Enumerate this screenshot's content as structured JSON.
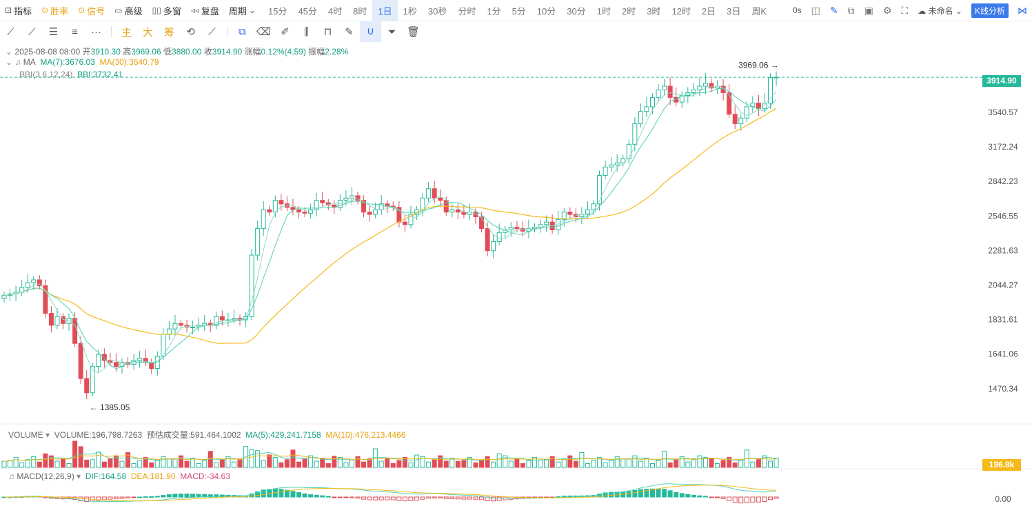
{
  "toolbar": {
    "items": [
      {
        "icon": "chart-icon",
        "label": "指标"
      },
      {
        "icon": "winrate-icon",
        "label": "胜率"
      },
      {
        "icon": "signal-icon",
        "label": "信号"
      },
      {
        "icon": "calendar-icon",
        "label": "高级"
      },
      {
        "icon": "grid-icon",
        "label": "多窗"
      },
      {
        "icon": "rewind-icon",
        "label": "复盘"
      },
      {
        "icon": "",
        "label": "周期"
      }
    ],
    "periods": [
      "15分",
      "45分",
      "4时",
      "8时",
      "1日",
      "1秒",
      "30秒",
      "分时",
      "1分",
      "5分",
      "10分",
      "30分",
      "1时",
      "2时",
      "3时",
      "12时",
      "2日",
      "3日",
      "周K"
    ],
    "active_period": "1日",
    "countdown": "0s",
    "layout_name": "未命名",
    "kline_button": "K线分析"
  },
  "drawtools": {
    "labels": [
      "主",
      "大",
      "筹"
    ]
  },
  "info": {
    "date": "2025-08-08 08:00",
    "open_label": "开",
    "open": "3910.30",
    "high_label": "高",
    "high": "3969.06",
    "low_label": "低",
    "low": "3880.00",
    "close_label": "收",
    "close": "3914.90",
    "change_label": "涨幅",
    "change": "0.12%(4.59)",
    "amp_label": "振幅",
    "amp": "2.28%",
    "ma_title": "MA",
    "ma7": "MA(7):3676.03",
    "ma30": "MA(30):3540.79",
    "bbi_title": "BBI(3,6,12,24)",
    "bbi": "BBI:3732.41"
  },
  "volume_info": {
    "title": "VOLUME",
    "volume": "VOLUME:196,798.7263",
    "estimated": "预估成交量:591,464.1002",
    "ma5": "MA(5):429,241.7158",
    "ma10": "MA(10):476,213.4466"
  },
  "macd_info": {
    "title": "MACD(12,26,9)",
    "dif": "DIF:164.58",
    "dea": "DEA:181.90",
    "macd": "MACD:-34.63"
  },
  "colors": {
    "up": "#26b89a",
    "down": "#e14d57",
    "ma7": "#4fd1b3",
    "ma30": "#f5b91b",
    "accent": "#2a6ee8"
  },
  "chart_data": {
    "type": "candlestick",
    "y_axis_ticks": [
      "3540.57",
      "3172.24",
      "2842.23",
      "2546.55",
      "2281.63",
      "2044.27",
      "1831.61",
      "1641.06",
      "1470.34"
    ],
    "last_price": "3914.90",
    "high_marker": "3969.06",
    "low_marker": "1385.05",
    "volume_last": "196.8k",
    "macd_axis": "0.00",
    "closes": [
      1980,
      1990,
      2000,
      2030,
      2060,
      2080,
      2040,
      1870,
      1800,
      1850,
      1810,
      1840,
      1700,
      1520,
      1450,
      1580,
      1640,
      1610,
      1600,
      1580,
      1600,
      1590,
      1610,
      1620,
      1600,
      1570,
      1630,
      1750,
      1780,
      1810,
      1800,
      1790,
      1790,
      1800,
      1810,
      1800,
      1850,
      1830,
      1830,
      1840,
      1830,
      1850,
      2250,
      2450,
      2600,
      2580,
      2680,
      2650,
      2620,
      2600,
      2580,
      2570,
      2600,
      2680,
      2660,
      2640,
      2620,
      2680,
      2700,
      2720,
      2680,
      2580,
      2560,
      2600,
      2650,
      2630,
      2620,
      2500,
      2480,
      2560,
      2600,
      2700,
      2780,
      2700,
      2680,
      2580,
      2600,
      2580,
      2560,
      2580,
      2540,
      2450,
      2280,
      2350,
      2420,
      2440,
      2460,
      2450,
      2430,
      2450,
      2460,
      2480,
      2500,
      2440,
      2520,
      2580,
      2560,
      2540,
      2560,
      2600,
      2650,
      2900,
      2980,
      3000,
      3020,
      3060,
      3200,
      3420,
      3550,
      3600,
      3700,
      3780,
      3820,
      3700,
      3650,
      3720,
      3750,
      3780,
      3820,
      3850,
      3800,
      3820,
      3750,
      3520,
      3420,
      3480,
      3600,
      3640,
      3580,
      3640,
      3910,
      3915
    ],
    "ma7_last": "3676.03",
    "ma30_last": "3540.79"
  }
}
